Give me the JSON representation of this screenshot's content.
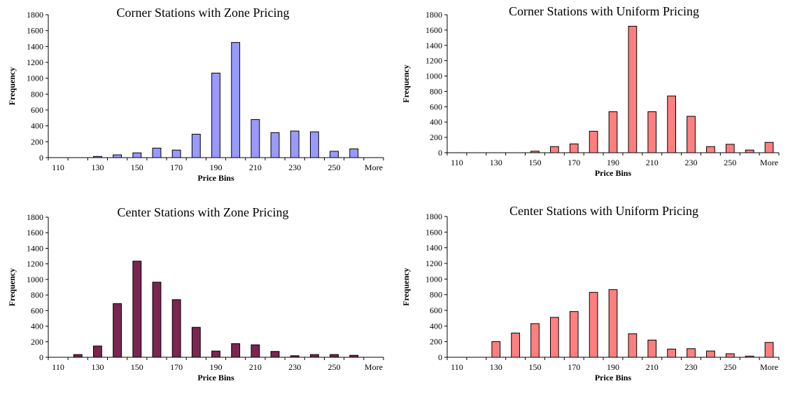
{
  "chart_data": [
    {
      "type": "bar",
      "title": "Corner Stations with Zone Pricing",
      "xlabel": "Price Bins",
      "ylabel": "Frequency",
      "ylim": [
        0,
        1800
      ],
      "y_ticks": [
        "0",
        "200",
        "400",
        "600",
        "800",
        "1000",
        "1200",
        "1400",
        "1600",
        "1800"
      ],
      "categories": [
        "110",
        "120",
        "130",
        "140",
        "150",
        "160",
        "170",
        "180",
        "190",
        "200",
        "210",
        "220",
        "230",
        "240",
        "250",
        "260",
        "More"
      ],
      "x_tick_labels": [
        "110",
        "",
        "130",
        "",
        "150",
        "",
        "170",
        "",
        "190",
        "",
        "210",
        "",
        "230",
        "",
        "250",
        "",
        "More"
      ],
      "values": [
        0,
        0,
        15,
        35,
        60,
        120,
        95,
        295,
        1065,
        1450,
        480,
        315,
        335,
        325,
        80,
        110,
        0
      ],
      "bar_color": "#9999FF"
    },
    {
      "type": "bar",
      "title": "Corner Stations with Uniform Pricing",
      "xlabel": "Price Bins",
      "ylabel": "Frequency",
      "ylim": [
        0,
        1800
      ],
      "y_ticks": [
        "0",
        "200",
        "400",
        "600",
        "800",
        "1000",
        "1200",
        "1400",
        "1600",
        "1800"
      ],
      "categories": [
        "110",
        "120",
        "130",
        "140",
        "150",
        "160",
        "170",
        "180",
        "190",
        "200",
        "210",
        "220",
        "230",
        "240",
        "250",
        "260",
        "More"
      ],
      "x_tick_labels": [
        "110",
        "",
        "130",
        "",
        "150",
        "",
        "170",
        "",
        "190",
        "",
        "210",
        "",
        "230",
        "",
        "250",
        "",
        "More"
      ],
      "values": [
        0,
        0,
        0,
        0,
        20,
        80,
        115,
        280,
        535,
        1650,
        535,
        740,
        475,
        80,
        110,
        35,
        135
      ],
      "bar_color": "#FF7F7F"
    },
    {
      "type": "bar",
      "title": "Center Stations with Zone Pricing",
      "xlabel": "Price Bins",
      "ylabel": "Frequency",
      "ylim": [
        0,
        1800
      ],
      "y_ticks": [
        "0",
        "200",
        "400",
        "600",
        "800",
        "1000",
        "1200",
        "1400",
        "1600",
        "1800"
      ],
      "categories": [
        "110",
        "120",
        "130",
        "140",
        "150",
        "160",
        "170",
        "180",
        "190",
        "200",
        "210",
        "220",
        "230",
        "240",
        "250",
        "260",
        "More"
      ],
      "x_tick_labels": [
        "110",
        "",
        "130",
        "",
        "150",
        "",
        "170",
        "",
        "190",
        "",
        "210",
        "",
        "230",
        "",
        "250",
        "",
        "More"
      ],
      "values": [
        0,
        35,
        145,
        690,
        1235,
        965,
        740,
        385,
        80,
        175,
        160,
        75,
        20,
        35,
        35,
        25,
        0
      ],
      "bar_color": "#7B2551"
    },
    {
      "type": "bar",
      "title": "Center Stations with Uniform Pricing",
      "xlabel": "Price Bins",
      "ylabel": "Frequency",
      "ylim": [
        0,
        1800
      ],
      "y_ticks": [
        "0",
        "200",
        "400",
        "600",
        "800",
        "1000",
        "1200",
        "1400",
        "1600",
        "1800"
      ],
      "categories": [
        "110",
        "120",
        "130",
        "140",
        "150",
        "160",
        "170",
        "180",
        "190",
        "200",
        "210",
        "220",
        "230",
        "240",
        "250",
        "260",
        "More"
      ],
      "x_tick_labels": [
        "110",
        "",
        "130",
        "",
        "150",
        "",
        "170",
        "",
        "190",
        "",
        "210",
        "",
        "230",
        "",
        "250",
        "",
        "More"
      ],
      "values": [
        0,
        0,
        200,
        310,
        430,
        510,
        585,
        830,
        865,
        300,
        220,
        105,
        110,
        80,
        45,
        15,
        190
      ],
      "bar_color": "#FF7F7F"
    }
  ]
}
